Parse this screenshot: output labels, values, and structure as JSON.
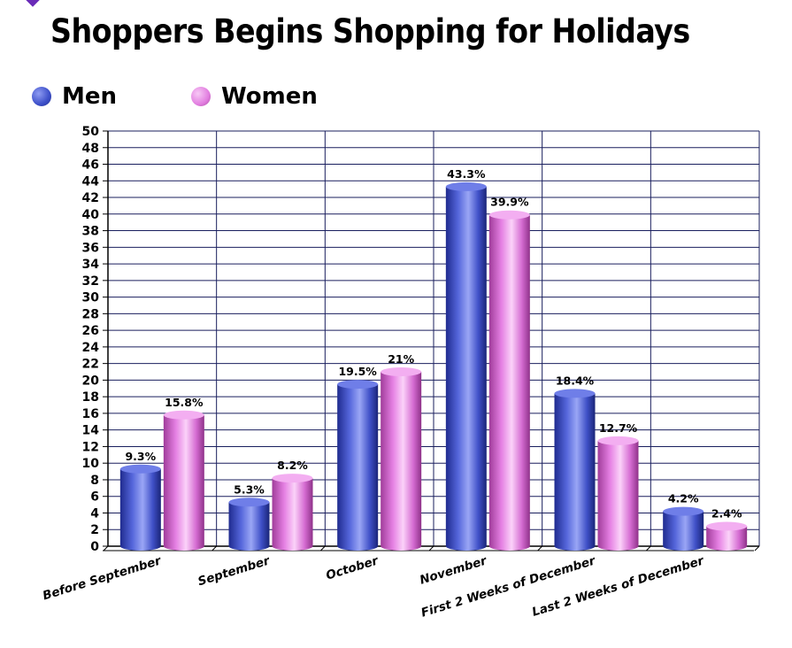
{
  "chart_data": {
    "type": "bar",
    "title": "Shoppers Begins Shopping for Holidays",
    "categories": [
      "Before September",
      "September",
      "October",
      "November",
      "First 2 Weeks of December",
      "Last 2 Weeks of December"
    ],
    "series": [
      {
        "name": "Men",
        "values": [
          9.3,
          5.3,
          19.5,
          43.3,
          18.4,
          4.2
        ],
        "labels": [
          "9.3%",
          "5.3%",
          "19.5%",
          "43.3%",
          "18.4%",
          "4.2%"
        ],
        "color": "#3c4fc9"
      },
      {
        "name": "Women",
        "values": [
          15.8,
          8.2,
          21,
          39.9,
          12.7,
          2.4
        ],
        "labels": [
          "15.8%",
          "8.2%",
          "21%",
          "39.9%",
          "12.7%",
          "2.4%"
        ],
        "color": "#e27ee0"
      }
    ],
    "xlabel": "",
    "ylabel": "",
    "ylim": [
      0,
      50
    ],
    "yticks": [
      0,
      2,
      4,
      6,
      8,
      10,
      12,
      14,
      16,
      18,
      20,
      22,
      24,
      26,
      28,
      30,
      32,
      34,
      36,
      38,
      40,
      42,
      44,
      46,
      48,
      50
    ],
    "grid": true,
    "legend_position": "top-left"
  }
}
